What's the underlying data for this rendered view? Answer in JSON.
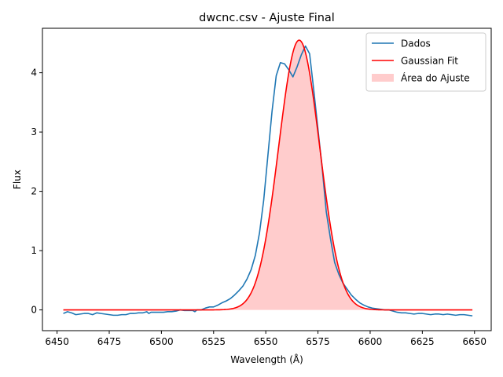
{
  "chart_data": {
    "type": "line",
    "title": "dwcnc.csv - Ajuste Final",
    "xlabel": "Wavelength (Å)",
    "ylabel": "Flux",
    "xlim": [
      6443,
      6658
    ],
    "ylim": [
      -0.35,
      4.75
    ],
    "xticks": [
      6450,
      6475,
      6500,
      6525,
      6550,
      6575,
      6600,
      6625,
      6650
    ],
    "yticks": [
      0,
      1,
      2,
      3,
      4
    ],
    "grid": false,
    "legend_position": "top-right",
    "series": [
      {
        "name": "Dados",
        "style": "line",
        "color": "#1f77b4",
        "x": [
          6453,
          6455,
          6457,
          6459,
          6461,
          6463,
          6465,
          6467,
          6469,
          6471,
          6473,
          6475,
          6477,
          6479,
          6481,
          6483,
          6485,
          6487,
          6489,
          6491,
          6493,
          6494,
          6495,
          6497,
          6499,
          6501,
          6503,
          6505,
          6507,
          6509,
          6511,
          6513,
          6515,
          6516,
          6517,
          6519,
          6521,
          6523,
          6525,
          6527,
          6529,
          6531,
          6533,
          6535,
          6537,
          6539,
          6541,
          6543,
          6545,
          6547,
          6549,
          6551,
          6553,
          6555,
          6557,
          6559,
          6561,
          6563,
          6565,
          6567,
          6569,
          6571,
          6573,
          6575,
          6577,
          6579,
          6581,
          6583,
          6585,
          6587,
          6589,
          6591,
          6593,
          6595,
          6597,
          6599,
          6601,
          6603,
          6605,
          6607,
          6609,
          6611,
          6613,
          6615,
          6617,
          6619,
          6621,
          6623,
          6625,
          6627,
          6629,
          6631,
          6633,
          6635,
          6637,
          6639,
          6641,
          6643,
          6645,
          6647,
          6649
        ],
        "y": [
          -0.06,
          -0.03,
          -0.05,
          -0.08,
          -0.07,
          -0.06,
          -0.06,
          -0.08,
          -0.05,
          -0.06,
          -0.07,
          -0.08,
          -0.09,
          -0.09,
          -0.08,
          -0.08,
          -0.06,
          -0.06,
          -0.05,
          -0.05,
          -0.03,
          -0.06,
          -0.04,
          -0.04,
          -0.04,
          -0.04,
          -0.03,
          -0.03,
          -0.02,
          0.0,
          -0.01,
          -0.01,
          -0.01,
          -0.03,
          0.0,
          0.0,
          0.03,
          0.05,
          0.05,
          0.08,
          0.12,
          0.15,
          0.19,
          0.25,
          0.32,
          0.4,
          0.52,
          0.68,
          0.92,
          1.3,
          1.85,
          2.6,
          3.35,
          3.95,
          4.17,
          4.15,
          4.05,
          3.93,
          4.1,
          4.3,
          4.45,
          4.32,
          3.7,
          3.05,
          2.4,
          1.65,
          1.2,
          0.8,
          0.6,
          0.45,
          0.35,
          0.25,
          0.18,
          0.12,
          0.08,
          0.05,
          0.03,
          0.02,
          0.01,
          0.0,
          0.0,
          -0.02,
          -0.04,
          -0.05,
          -0.05,
          -0.06,
          -0.07,
          -0.06,
          -0.06,
          -0.07,
          -0.08,
          -0.07,
          -0.07,
          -0.08,
          -0.07,
          -0.08,
          -0.09,
          -0.08,
          -0.08,
          -0.09,
          -0.1
        ]
      },
      {
        "name": "Gaussian Fit",
        "style": "line",
        "color": "#ff0000",
        "model": "gaussian",
        "amplitude": 4.55,
        "center": 6566,
        "sigma": 9.8,
        "x_range": [
          6453,
          6649
        ]
      },
      {
        "name": "Área do Ajuste",
        "style": "area",
        "color": "#ff0000",
        "opacity": 0.2,
        "fill_under": "Gaussian Fit"
      }
    ]
  }
}
